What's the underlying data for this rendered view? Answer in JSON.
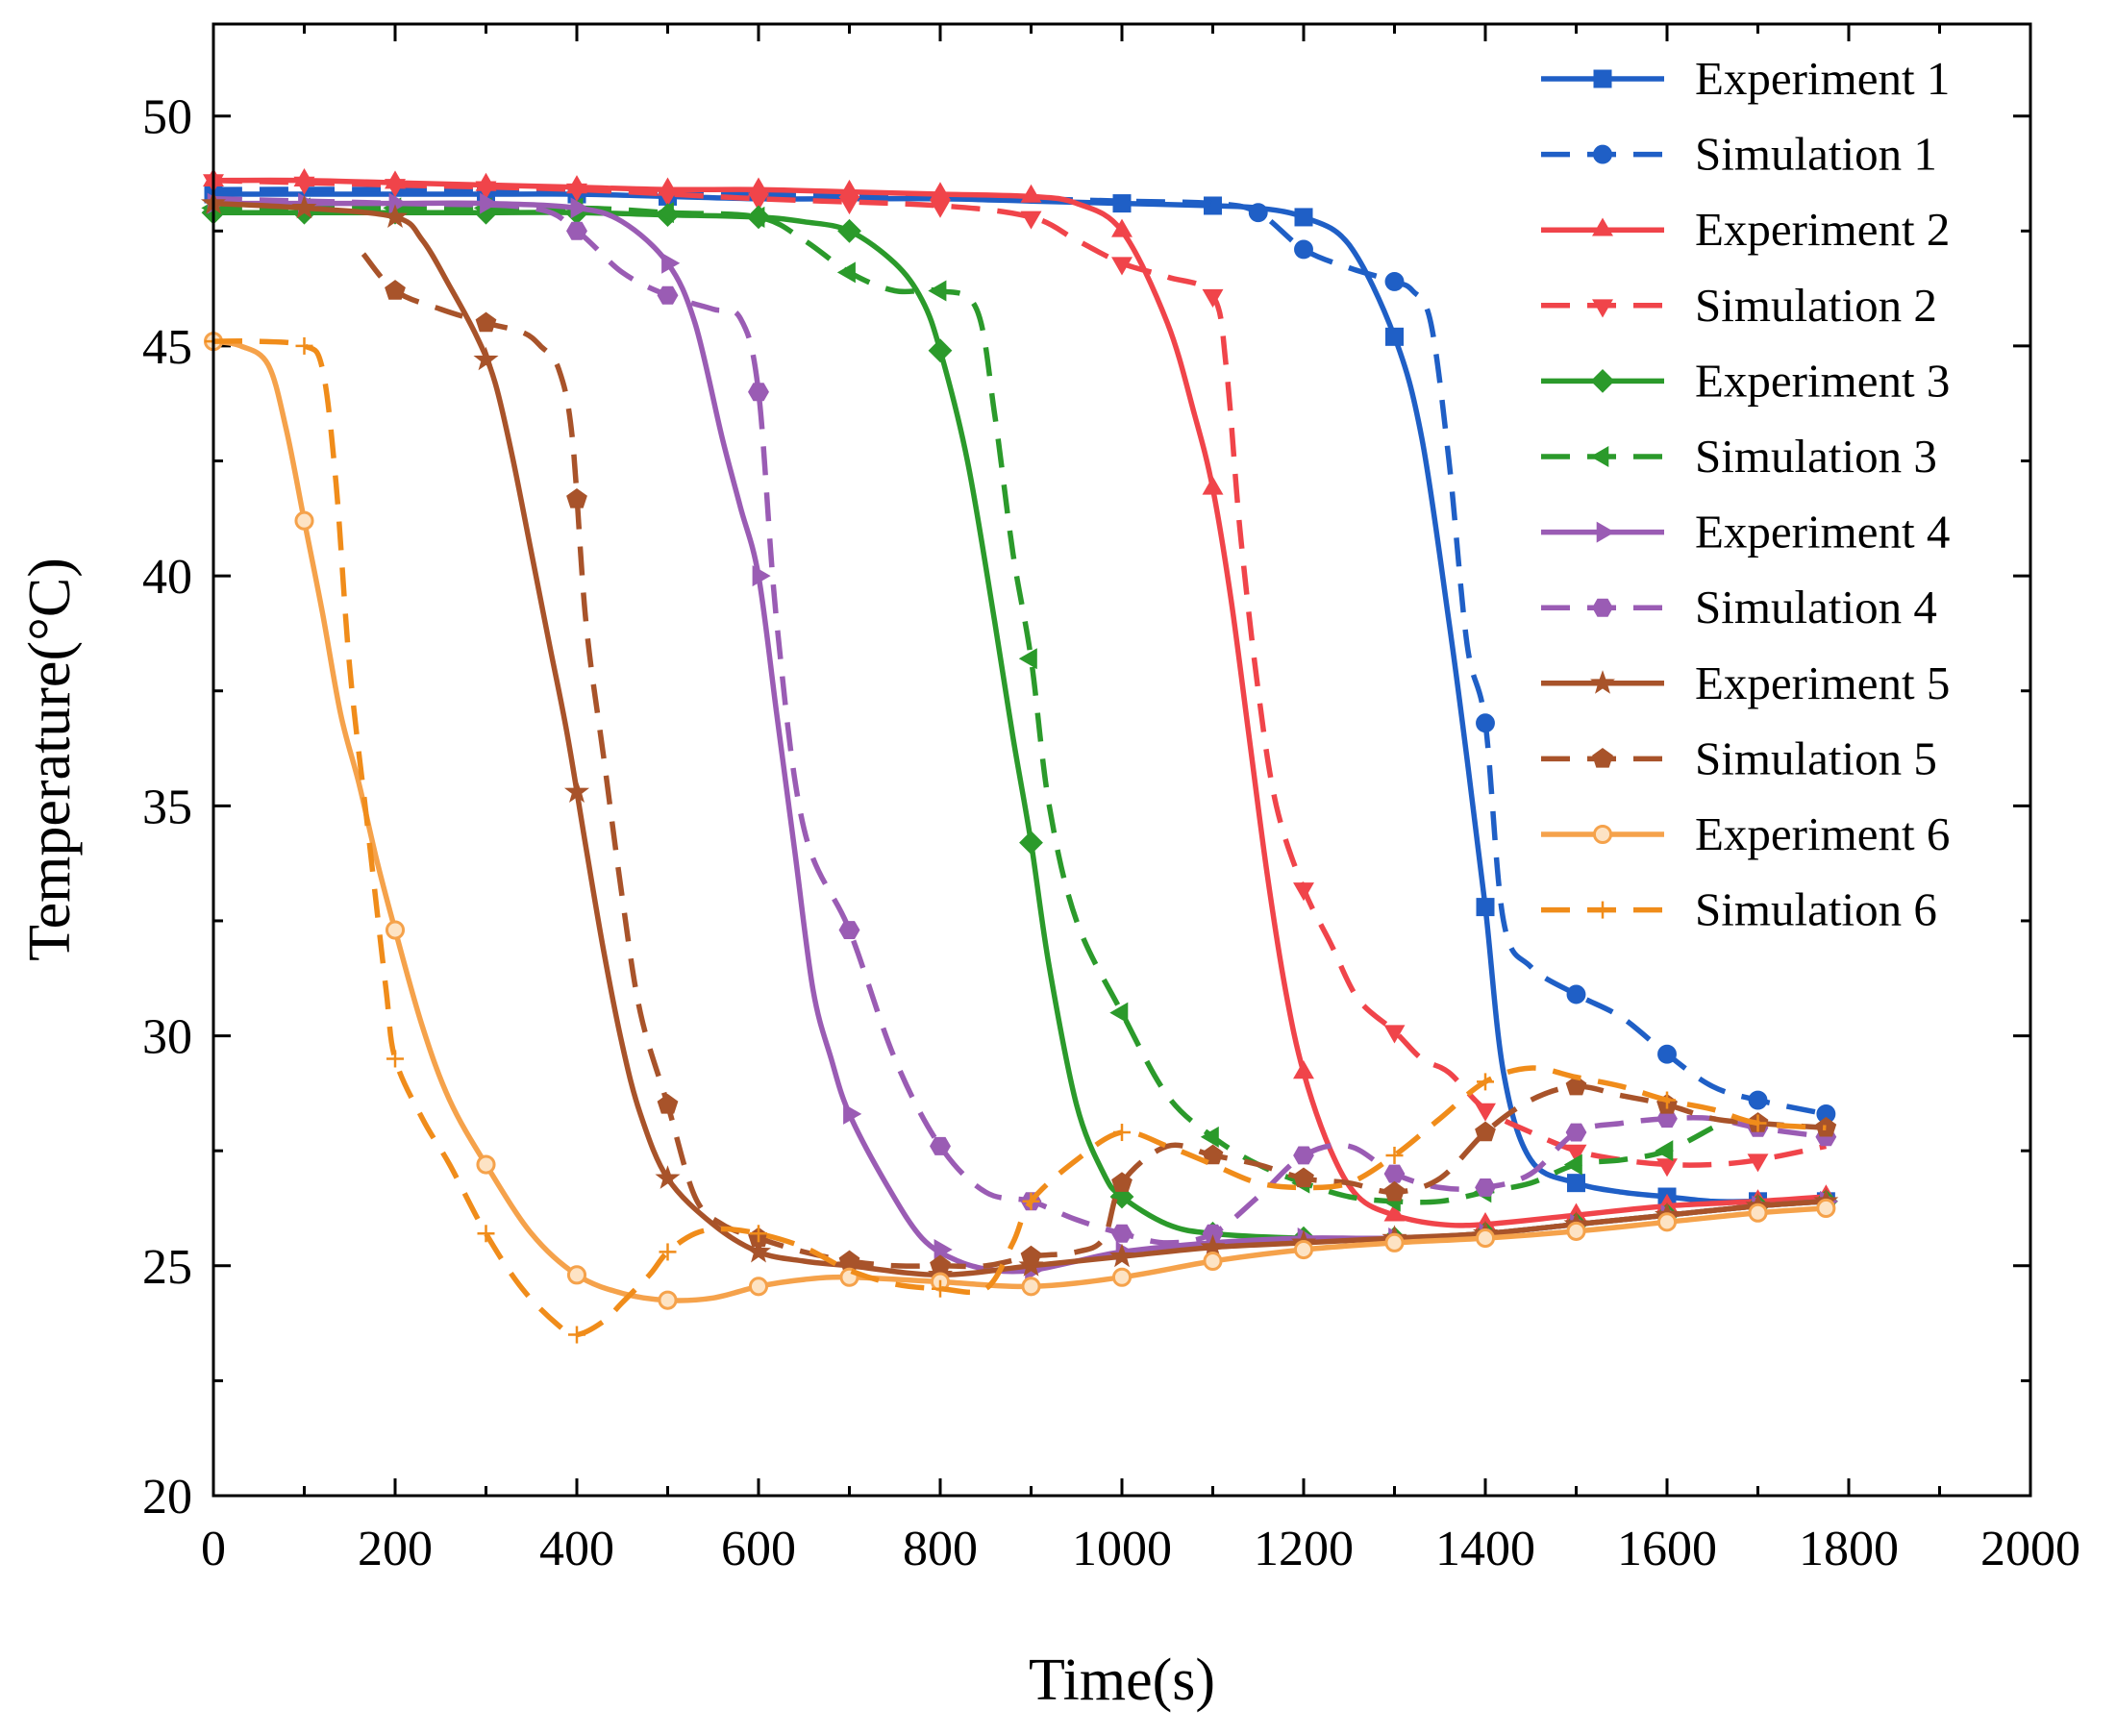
{
  "chart_data": {
    "type": "line",
    "title": "",
    "xlabel": "Time(s)",
    "ylabel": "Temperature(°C)",
    "xlim": [
      0,
      2000
    ],
    "ylim": [
      20,
      52
    ],
    "xticks": [
      0,
      200,
      400,
      600,
      800,
      1000,
      1200,
      1400,
      1600,
      1800,
      2000
    ],
    "xtick_labels": [
      "0",
      "200",
      "400",
      "600",
      "800",
      "1000",
      "1200",
      "1400",
      "1600",
      "1800",
      "2000"
    ],
    "yticks": [
      20,
      25,
      30,
      35,
      40,
      45,
      50
    ],
    "ytick_labels": [
      "20",
      "25",
      "30",
      "35",
      "40",
      "45",
      "50"
    ],
    "grid": false,
    "legend_position": "top-right",
    "series": [
      {
        "name": "Experiment 1",
        "color": "#1f5fc6",
        "dash": "solid",
        "marker": "square",
        "x": [
          0,
          300,
          400,
          500,
          600,
          700,
          800,
          900,
          1000,
          1100,
          1150,
          1200,
          1250,
          1300,
          1330,
          1360,
          1380,
          1400,
          1420,
          1450,
          1500,
          1550,
          1600,
          1650,
          1700,
          1775
        ],
        "y": [
          48.3,
          48.3,
          48.3,
          48.25,
          48.2,
          48.2,
          48.2,
          48.15,
          48.1,
          48.05,
          48.0,
          47.8,
          47.2,
          45.2,
          43.0,
          39.0,
          36.0,
          32.8,
          29.2,
          27.3,
          26.8,
          26.6,
          26.5,
          26.4,
          26.4,
          26.4
        ],
        "marker_x": [
          0,
          300,
          400,
          500,
          1000,
          1100,
          1200,
          1300,
          1400,
          1500,
          1600,
          1700,
          1775
        ]
      },
      {
        "name": "Simulation 1",
        "color": "#1f5fc6",
        "dash": "dashed",
        "marker": "circle",
        "x": [
          0,
          200,
          400,
          600,
          800,
          1000,
          1100,
          1150,
          1200,
          1250,
          1300,
          1320,
          1340,
          1360,
          1380,
          1400,
          1420,
          1450,
          1500,
          1550,
          1600,
          1650,
          1700,
          1775
        ],
        "y": [
          48.4,
          48.4,
          48.35,
          48.3,
          48.25,
          48.15,
          48.1,
          47.9,
          47.1,
          46.7,
          46.4,
          46.2,
          45.5,
          42.5,
          38.5,
          36.8,
          32.5,
          31.5,
          30.9,
          30.4,
          29.6,
          28.9,
          28.6,
          28.3
        ],
        "marker_x": [
          1150,
          1200,
          1300,
          1400,
          1500,
          1600,
          1700,
          1775
        ]
      },
      {
        "name": "Experiment 2",
        "color": "#f0444a",
        "dash": "solid",
        "marker": "triangle",
        "x": [
          0,
          100,
          200,
          300,
          400,
          500,
          600,
          700,
          800,
          900,
          950,
          1000,
          1050,
          1080,
          1100,
          1120,
          1140,
          1160,
          1180,
          1200,
          1230,
          1260,
          1300,
          1350,
          1400,
          1500,
          1600,
          1700,
          1775
        ],
        "y": [
          48.6,
          48.6,
          48.55,
          48.5,
          48.45,
          48.4,
          48.4,
          48.35,
          48.3,
          48.25,
          48.1,
          47.5,
          45.5,
          43.5,
          41.9,
          39.5,
          36.5,
          33.5,
          31.0,
          29.2,
          27.5,
          26.5,
          26.1,
          25.9,
          25.9,
          26.1,
          26.3,
          26.4,
          26.5
        ],
        "marker_x": [
          0,
          100,
          200,
          300,
          400,
          500,
          600,
          700,
          800,
          900,
          1000,
          1100,
          1200,
          1300,
          1400,
          1500,
          1600,
          1700,
          1775
        ]
      },
      {
        "name": "Simulation 2",
        "color": "#f0444a",
        "dash": "dashed",
        "marker": "triangle-down",
        "x": [
          0,
          200,
          400,
          600,
          800,
          900,
          950,
          1000,
          1050,
          1100,
          1115,
          1130,
          1150,
          1170,
          1200,
          1230,
          1260,
          1300,
          1330,
          1360,
          1400,
          1450,
          1500,
          1550,
          1600,
          1650,
          1700,
          1775
        ],
        "y": [
          48.6,
          48.5,
          48.4,
          48.2,
          48.05,
          47.8,
          47.3,
          46.8,
          46.5,
          46.1,
          44.5,
          41.0,
          37.5,
          35.0,
          33.2,
          32.0,
          30.8,
          30.1,
          29.5,
          29.2,
          28.4,
          27.9,
          27.5,
          27.3,
          27.2,
          27.2,
          27.3,
          27.6
        ],
        "marker_x": [
          0,
          100,
          200,
          300,
          400,
          500,
          600,
          700,
          800,
          900,
          1000,
          1100,
          1200,
          1300,
          1400,
          1500,
          1600,
          1700
        ]
      },
      {
        "name": "Experiment 3",
        "color": "#2b9a2b",
        "dash": "solid",
        "marker": "diamond",
        "x": [
          0,
          100,
          200,
          300,
          400,
          500,
          600,
          650,
          700,
          750,
          780,
          800,
          830,
          860,
          880,
          900,
          920,
          950,
          980,
          1000,
          1050,
          1100,
          1200,
          1300,
          1400,
          1500,
          1600,
          1700,
          1775
        ],
        "y": [
          47.9,
          47.9,
          47.9,
          47.9,
          47.9,
          47.85,
          47.8,
          47.7,
          47.5,
          46.8,
          46.0,
          44.9,
          42.5,
          39.0,
          36.5,
          34.2,
          31.5,
          28.5,
          27.0,
          26.5,
          25.9,
          25.7,
          25.6,
          25.6,
          25.7,
          25.9,
          26.1,
          26.3,
          26.4
        ],
        "marker_x": [
          0,
          100,
          200,
          300,
          400,
          500,
          600,
          700,
          800,
          900,
          1000,
          1100,
          1200,
          1300,
          1400,
          1500,
          1600,
          1700,
          1775
        ]
      },
      {
        "name": "Simulation 3",
        "color": "#2b9a2b",
        "dash": "dashed",
        "marker": "triangle-left",
        "x": [
          0,
          200,
          400,
          500,
          600,
          650,
          700,
          750,
          800,
          840,
          860,
          880,
          900,
          920,
          950,
          1000,
          1050,
          1100,
          1150,
          1200,
          1250,
          1300,
          1350,
          1400,
          1450,
          1500,
          1550,
          1600,
          1650
        ],
        "y": [
          48.0,
          48.0,
          48.0,
          47.9,
          47.8,
          47.3,
          46.6,
          46.2,
          46.2,
          45.8,
          43.5,
          40.5,
          38.2,
          35.0,
          32.5,
          30.5,
          28.7,
          27.8,
          27.2,
          26.8,
          26.5,
          26.4,
          26.4,
          26.6,
          26.8,
          27.2,
          27.3,
          27.5,
          28.0
        ],
        "marker_x": [
          0,
          100,
          200,
          300,
          400,
          500,
          600,
          700,
          800,
          900,
          1000,
          1100,
          1200,
          1300,
          1400,
          1500,
          1600
        ]
      },
      {
        "name": "Experiment 4",
        "color": "#9a5cb4",
        "dash": "solid",
        "marker": "triangle-right",
        "x": [
          0,
          100,
          200,
          300,
          400,
          450,
          500,
          530,
          560,
          580,
          600,
          620,
          640,
          660,
          680,
          700,
          740,
          780,
          820,
          860,
          900,
          950,
          1000,
          1100,
          1200,
          1300,
          1400,
          1500,
          1600,
          1700,
          1775
        ],
        "y": [
          48.1,
          48.1,
          48.1,
          48.1,
          48.0,
          47.7,
          46.8,
          45.5,
          43.0,
          41.5,
          40.0,
          37.0,
          34.0,
          31.0,
          29.5,
          28.3,
          26.8,
          25.6,
          25.1,
          24.9,
          24.9,
          25.1,
          25.3,
          25.5,
          25.6,
          25.6,
          25.7,
          25.9,
          26.1,
          26.3,
          26.4
        ],
        "marker_x": [
          0,
          100,
          200,
          300,
          400,
          500,
          600,
          700,
          800,
          900,
          1000,
          1100,
          1200,
          1300,
          1400,
          1500,
          1600,
          1700,
          1775
        ]
      },
      {
        "name": "Simulation 4",
        "color": "#9a5cb4",
        "dash": "dashed",
        "marker": "hexagon",
        "x": [
          0,
          200,
          350,
          400,
          450,
          500,
          550,
          580,
          600,
          620,
          650,
          700,
          750,
          800,
          850,
          900,
          950,
          1000,
          1050,
          1100,
          1150,
          1200,
          1250,
          1300,
          1350,
          1400,
          1450,
          1500,
          1550,
          1600,
          1650,
          1700,
          1775
        ],
        "y": [
          48.2,
          48.1,
          48.0,
          47.5,
          46.6,
          46.1,
          45.8,
          45.6,
          44.0,
          39.0,
          34.5,
          32.3,
          29.5,
          27.6,
          26.6,
          26.4,
          26.0,
          25.7,
          25.5,
          25.7,
          26.5,
          27.4,
          27.6,
          27.0,
          26.7,
          26.7,
          27.0,
          27.9,
          28.1,
          28.2,
          28.2,
          28.0,
          27.8
        ],
        "marker_x": [
          400,
          500,
          600,
          700,
          800,
          900,
          1000,
          1100,
          1200,
          1300,
          1400,
          1500,
          1600,
          1700,
          1775
        ]
      },
      {
        "name": "Experiment 5",
        "color": "#a8532a",
        "dash": "solid",
        "marker": "star",
        "x": [
          0,
          100,
          200,
          230,
          260,
          290,
          310,
          330,
          350,
          370,
          390,
          410,
          430,
          450,
          470,
          500,
          550,
          600,
          650,
          700,
          800,
          900,
          1000,
          1100,
          1200,
          1300,
          1400,
          1500,
          1600,
          1700,
          1775
        ],
        "y": [
          48.1,
          48.0,
          47.8,
          47.3,
          46.3,
          45.2,
          44.2,
          42.5,
          40.5,
          38.5,
          36.5,
          34.1,
          31.8,
          29.8,
          28.3,
          26.9,
          25.9,
          25.3,
          25.1,
          25.0,
          24.8,
          25.0,
          25.2,
          25.4,
          25.5,
          25.6,
          25.7,
          25.9,
          26.1,
          26.3,
          26.4
        ],
        "marker_x": [
          0,
          100,
          200,
          300,
          400,
          500,
          600,
          700,
          800,
          900,
          1000,
          1100,
          1200,
          1300,
          1400,
          1500,
          1600,
          1700,
          1775
        ]
      },
      {
        "name": "Simulation 5",
        "color": "#a8532a",
        "dash": "dashed",
        "marker": "pentagon",
        "x": [
          165,
          200,
          250,
          300,
          340,
          360,
          380,
          395,
          410,
          430,
          450,
          470,
          500,
          530,
          560,
          600,
          650,
          700,
          750,
          800,
          850,
          900,
          950,
          980,
          1000,
          1050,
          1100,
          1150,
          1200,
          1250,
          1300,
          1350,
          1400,
          1450,
          1500,
          1550,
          1600,
          1650,
          1700,
          1775
        ],
        "y": [
          47.0,
          46.2,
          45.8,
          45.5,
          45.3,
          45.0,
          44.5,
          43.0,
          39.0,
          36.0,
          33.0,
          30.5,
          28.5,
          26.5,
          25.9,
          25.6,
          25.3,
          25.1,
          25.0,
          25.0,
          25.0,
          25.2,
          25.3,
          25.6,
          26.8,
          27.6,
          27.4,
          27.2,
          26.9,
          26.8,
          26.6,
          26.9,
          27.9,
          28.6,
          28.9,
          28.7,
          28.5,
          28.2,
          28.1,
          28.0
        ],
        "marker_x": [
          200,
          300,
          400,
          500,
          600,
          700,
          800,
          900,
          1000,
          1100,
          1200,
          1300,
          1400,
          1500,
          1600,
          1700,
          1775
        ]
      },
      {
        "name": "Experiment 6",
        "color": "#f5a24b",
        "dash": "solid",
        "marker": "circle-open",
        "x": [
          0,
          30,
          60,
          80,
          100,
          120,
          140,
          160,
          180,
          200,
          230,
          260,
          300,
          350,
          400,
          450,
          500,
          550,
          600,
          650,
          700,
          800,
          900,
          1000,
          1100,
          1200,
          1300,
          1400,
          1500,
          1600,
          1700,
          1775
        ],
        "y": [
          45.1,
          45.0,
          44.6,
          43.2,
          41.2,
          39.2,
          37.0,
          35.5,
          33.8,
          32.3,
          30.2,
          28.6,
          27.2,
          25.7,
          24.8,
          24.4,
          24.25,
          24.3,
          24.55,
          24.7,
          24.75,
          24.65,
          24.55,
          24.75,
          25.1,
          25.35,
          25.5,
          25.6,
          25.75,
          25.95,
          26.15,
          26.25
        ],
        "marker_x": [
          0,
          100,
          200,
          300,
          400,
          500,
          600,
          700,
          800,
          900,
          1000,
          1100,
          1200,
          1300,
          1400,
          1500,
          1600,
          1700,
          1775
        ]
      },
      {
        "name": "Simulation 6",
        "color": "#f08c1a",
        "dash": "dashed",
        "marker": "plus",
        "x": [
          0,
          50,
          100,
          120,
          135,
          150,
          170,
          190,
          200,
          230,
          260,
          300,
          340,
          380,
          400,
          430,
          450,
          480,
          500,
          530,
          560,
          600,
          650,
          700,
          750,
          800,
          850,
          880,
          900,
          950,
          1000,
          1050,
          1100,
          1150,
          1200,
          1250,
          1300,
          1350,
          1400,
          1450,
          1500,
          1550,
          1600,
          1650,
          1700,
          1775
        ],
        "y": [
          45.1,
          45.1,
          45.0,
          44.5,
          42.0,
          38.0,
          34.5,
          31.0,
          29.5,
          28.2,
          27.2,
          25.7,
          24.5,
          23.7,
          23.5,
          23.8,
          24.2,
          24.8,
          25.3,
          25.7,
          25.8,
          25.7,
          25.4,
          24.9,
          24.6,
          24.5,
          24.5,
          25.5,
          26.4,
          27.3,
          27.9,
          27.6,
          27.2,
          26.8,
          26.7,
          26.8,
          27.4,
          28.2,
          29.0,
          29.3,
          29.1,
          28.9,
          28.6,
          28.4,
          28.1,
          28.0
        ],
        "marker_x": [
          0,
          100,
          200,
          300,
          400,
          500,
          600,
          800,
          900,
          1000,
          1300,
          1400,
          1600,
          1700
        ]
      }
    ]
  }
}
